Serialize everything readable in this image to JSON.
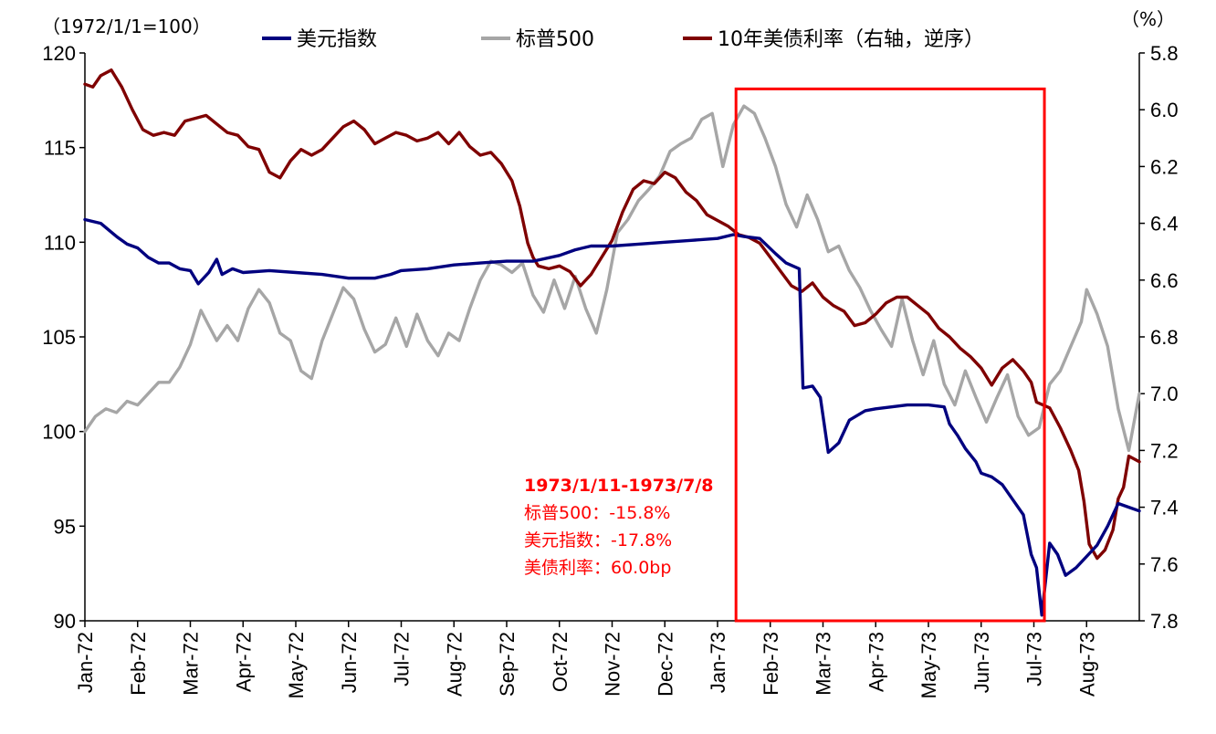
{
  "chart_data": {
    "type": "line",
    "left_axis_unit": "（1972/1/1=100）",
    "right_axis_unit": "（%）",
    "x_tick_labels": [
      "Jan-72",
      "Feb-72",
      "Mar-72",
      "Apr-72",
      "May-72",
      "Jun-72",
      "Jul-72",
      "Aug-72",
      "Sep-72",
      "Oct-72",
      "Nov-72",
      "Dec-72",
      "Jan-73",
      "Feb-73",
      "Mar-73",
      "Apr-73",
      "May-73",
      "Jun-73",
      "Jul-73",
      "Aug-73"
    ],
    "y_left_ticks": [
      "90",
      "95",
      "100",
      "105",
      "110",
      "115",
      "120"
    ],
    "y_right_ticks": [
      "5.8",
      "6.0",
      "6.2",
      "6.4",
      "6.6",
      "6.8",
      "7.0",
      "7.2",
      "7.4",
      "7.6",
      "7.8"
    ],
    "y_left_range": [
      90,
      120
    ],
    "y_right_range": [
      5.8,
      7.8
    ],
    "y_right_reversed": true,
    "x_range_months": [
      0,
      20
    ],
    "grid": false,
    "legend_position": "top",
    "series": [
      {
        "name": "美元指数",
        "axis": "left",
        "color": "#00007f",
        "points": [
          [
            0,
            111.2
          ],
          [
            0.3,
            111
          ],
          [
            0.6,
            110.3
          ],
          [
            0.8,
            109.9
          ],
          [
            1.0,
            109.7
          ],
          [
            1.2,
            109.2
          ],
          [
            1.4,
            108.9
          ],
          [
            1.6,
            108.9
          ],
          [
            1.8,
            108.6
          ],
          [
            2.0,
            108.5
          ],
          [
            2.15,
            107.8
          ],
          [
            2.35,
            108.4
          ],
          [
            2.5,
            109.1
          ],
          [
            2.6,
            108.3
          ],
          [
            2.8,
            108.6
          ],
          [
            3.0,
            108.4
          ],
          [
            3.5,
            108.5
          ],
          [
            4.0,
            108.4
          ],
          [
            4.5,
            108.3
          ],
          [
            5.0,
            108.1
          ],
          [
            5.5,
            108.1
          ],
          [
            5.8,
            108.3
          ],
          [
            6.0,
            108.5
          ],
          [
            6.5,
            108.6
          ],
          [
            7.0,
            108.8
          ],
          [
            7.5,
            108.9
          ],
          [
            8.0,
            109.0
          ],
          [
            8.5,
            109.0
          ],
          [
            9.0,
            109.3
          ],
          [
            9.3,
            109.6
          ],
          [
            9.6,
            109.8
          ],
          [
            10.0,
            109.8
          ],
          [
            10.5,
            109.9
          ],
          [
            11.0,
            110.0
          ],
          [
            11.5,
            110.1
          ],
          [
            12.0,
            110.2
          ],
          [
            12.3,
            110.4
          ],
          [
            12.5,
            110.3
          ],
          [
            12.8,
            110.2
          ],
          [
            13.1,
            109.4
          ],
          [
            13.3,
            108.9
          ],
          [
            13.55,
            108.6
          ],
          [
            13.62,
            102.3
          ],
          [
            13.8,
            102.4
          ],
          [
            13.95,
            101.8
          ],
          [
            14.1,
            98.9
          ],
          [
            14.3,
            99.4
          ],
          [
            14.5,
            100.6
          ],
          [
            14.8,
            101.1
          ],
          [
            15.0,
            101.2
          ],
          [
            15.3,
            101.3
          ],
          [
            15.6,
            101.4
          ],
          [
            16.0,
            101.4
          ],
          [
            16.3,
            101.3
          ],
          [
            16.4,
            100.4
          ],
          [
            16.55,
            99.8
          ],
          [
            16.7,
            99.1
          ],
          [
            16.9,
            98.4
          ],
          [
            17.0,
            97.8
          ],
          [
            17.2,
            97.6
          ],
          [
            17.4,
            97.2
          ],
          [
            17.6,
            96.4
          ],
          [
            17.8,
            95.6
          ],
          [
            17.95,
            93.5
          ],
          [
            18.05,
            92.8
          ],
          [
            18.15,
            90.3
          ],
          [
            18.3,
            94.1
          ],
          [
            18.45,
            93.5
          ],
          [
            18.6,
            92.4
          ],
          [
            18.8,
            92.8
          ],
          [
            19.0,
            93.4
          ],
          [
            19.2,
            94.0
          ],
          [
            19.4,
            95.0
          ],
          [
            19.6,
            96.2
          ],
          [
            19.8,
            96.0
          ],
          [
            20.0,
            95.8
          ]
        ]
      },
      {
        "name": "标普500",
        "axis": "left",
        "color": "#a6a6a6",
        "points": [
          [
            0,
            100.0
          ],
          [
            0.2,
            100.8
          ],
          [
            0.4,
            101.2
          ],
          [
            0.6,
            101.0
          ],
          [
            0.8,
            101.6
          ],
          [
            1.0,
            101.4
          ],
          [
            1.2,
            102.0
          ],
          [
            1.4,
            102.6
          ],
          [
            1.6,
            102.6
          ],
          [
            1.8,
            103.4
          ],
          [
            2.0,
            104.6
          ],
          [
            2.2,
            106.4
          ],
          [
            2.35,
            105.6
          ],
          [
            2.5,
            104.8
          ],
          [
            2.7,
            105.6
          ],
          [
            2.9,
            104.8
          ],
          [
            3.1,
            106.5
          ],
          [
            3.3,
            107.5
          ],
          [
            3.5,
            106.8
          ],
          [
            3.7,
            105.2
          ],
          [
            3.9,
            104.8
          ],
          [
            4.1,
            103.2
          ],
          [
            4.3,
            102.8
          ],
          [
            4.5,
            104.8
          ],
          [
            4.7,
            106.2
          ],
          [
            4.9,
            107.6
          ],
          [
            5.1,
            107.0
          ],
          [
            5.3,
            105.4
          ],
          [
            5.5,
            104.2
          ],
          [
            5.7,
            104.6
          ],
          [
            5.9,
            106.0
          ],
          [
            6.1,
            104.5
          ],
          [
            6.3,
            106.2
          ],
          [
            6.5,
            104.8
          ],
          [
            6.7,
            104.0
          ],
          [
            6.9,
            105.2
          ],
          [
            7.1,
            104.8
          ],
          [
            7.3,
            106.5
          ],
          [
            7.5,
            108.0
          ],
          [
            7.7,
            109.0
          ],
          [
            7.9,
            108.8
          ],
          [
            8.1,
            108.4
          ],
          [
            8.3,
            108.9
          ],
          [
            8.5,
            107.2
          ],
          [
            8.7,
            106.3
          ],
          [
            8.9,
            108.0
          ],
          [
            9.1,
            106.5
          ],
          [
            9.3,
            108.2
          ],
          [
            9.5,
            106.5
          ],
          [
            9.7,
            105.2
          ],
          [
            9.9,
            107.5
          ],
          [
            10.1,
            110.5
          ],
          [
            10.3,
            111.2
          ],
          [
            10.5,
            112.2
          ],
          [
            10.7,
            112.8
          ],
          [
            10.9,
            113.5
          ],
          [
            11.1,
            114.8
          ],
          [
            11.3,
            115.2
          ],
          [
            11.5,
            115.5
          ],
          [
            11.7,
            116.5
          ],
          [
            11.9,
            116.8
          ],
          [
            12.1,
            114.0
          ],
          [
            12.3,
            116.2
          ],
          [
            12.5,
            117.2
          ],
          [
            12.7,
            116.8
          ],
          [
            12.9,
            115.5
          ],
          [
            13.1,
            114.0
          ],
          [
            13.3,
            112.0
          ],
          [
            13.5,
            110.8
          ],
          [
            13.7,
            112.5
          ],
          [
            13.9,
            111.2
          ],
          [
            14.1,
            109.5
          ],
          [
            14.3,
            109.8
          ],
          [
            14.5,
            108.5
          ],
          [
            14.7,
            107.6
          ],
          [
            14.9,
            106.4
          ],
          [
            15.1,
            105.4
          ],
          [
            15.3,
            104.5
          ],
          [
            15.5,
            107.0
          ],
          [
            15.7,
            104.8
          ],
          [
            15.9,
            103.0
          ],
          [
            16.1,
            104.8
          ],
          [
            16.3,
            102.5
          ],
          [
            16.5,
            101.4
          ],
          [
            16.7,
            103.2
          ],
          [
            16.9,
            101.8
          ],
          [
            17.1,
            100.5
          ],
          [
            17.3,
            101.8
          ],
          [
            17.5,
            103.0
          ],
          [
            17.7,
            100.8
          ],
          [
            17.9,
            99.8
          ],
          [
            18.1,
            100.2
          ],
          [
            18.3,
            102.5
          ],
          [
            18.5,
            103.2
          ],
          [
            18.7,
            104.5
          ],
          [
            18.9,
            105.8
          ],
          [
            19.0,
            107.5
          ],
          [
            19.2,
            106.2
          ],
          [
            19.4,
            104.5
          ],
          [
            19.6,
            101.2
          ],
          [
            19.8,
            99.0
          ],
          [
            20.0,
            102.0
          ]
        ]
      },
      {
        "name": "10年美债利率（右轴，逆序）",
        "axis": "right",
        "color": "#7f0000",
        "points": [
          [
            0,
            5.91
          ],
          [
            0.15,
            5.92
          ],
          [
            0.3,
            5.88
          ],
          [
            0.5,
            5.86
          ],
          [
            0.7,
            5.92
          ],
          [
            0.9,
            6.0
          ],
          [
            1.1,
            6.07
          ],
          [
            1.3,
            6.09
          ],
          [
            1.5,
            6.08
          ],
          [
            1.7,
            6.09
          ],
          [
            1.9,
            6.04
          ],
          [
            2.1,
            6.03
          ],
          [
            2.3,
            6.02
          ],
          [
            2.5,
            6.05
          ],
          [
            2.7,
            6.08
          ],
          [
            2.9,
            6.09
          ],
          [
            3.1,
            6.13
          ],
          [
            3.3,
            6.14
          ],
          [
            3.5,
            6.22
          ],
          [
            3.7,
            6.24
          ],
          [
            3.9,
            6.18
          ],
          [
            4.1,
            6.14
          ],
          [
            4.3,
            6.16
          ],
          [
            4.5,
            6.14
          ],
          [
            4.7,
            6.1
          ],
          [
            4.9,
            6.06
          ],
          [
            5.1,
            6.04
          ],
          [
            5.3,
            6.07
          ],
          [
            5.5,
            6.12
          ],
          [
            5.7,
            6.1
          ],
          [
            5.9,
            6.08
          ],
          [
            6.1,
            6.09
          ],
          [
            6.3,
            6.11
          ],
          [
            6.5,
            6.1
          ],
          [
            6.7,
            6.08
          ],
          [
            6.9,
            6.12
          ],
          [
            7.1,
            6.08
          ],
          [
            7.3,
            6.13
          ],
          [
            7.5,
            6.16
          ],
          [
            7.7,
            6.15
          ],
          [
            7.9,
            6.19
          ],
          [
            8.1,
            6.25
          ],
          [
            8.25,
            6.34
          ],
          [
            8.4,
            6.47
          ],
          [
            8.5,
            6.52
          ],
          [
            8.6,
            6.55
          ],
          [
            8.8,
            6.56
          ],
          [
            9.0,
            6.55
          ],
          [
            9.2,
            6.57
          ],
          [
            9.4,
            6.62
          ],
          [
            9.6,
            6.58
          ],
          [
            9.8,
            6.52
          ],
          [
            10.0,
            6.46
          ],
          [
            10.2,
            6.36
          ],
          [
            10.4,
            6.28
          ],
          [
            10.6,
            6.25
          ],
          [
            10.8,
            6.26
          ],
          [
            11.0,
            6.22
          ],
          [
            11.2,
            6.24
          ],
          [
            11.4,
            6.29
          ],
          [
            11.6,
            6.32
          ],
          [
            11.8,
            6.37
          ],
          [
            12.0,
            6.39
          ],
          [
            12.2,
            6.41
          ],
          [
            12.4,
            6.44
          ],
          [
            12.6,
            6.45
          ],
          [
            12.8,
            6.47
          ],
          [
            13.0,
            6.52
          ],
          [
            13.2,
            6.57
          ],
          [
            13.4,
            6.62
          ],
          [
            13.6,
            6.64
          ],
          [
            13.8,
            6.61
          ],
          [
            14.0,
            6.66
          ],
          [
            14.2,
            6.69
          ],
          [
            14.4,
            6.71
          ],
          [
            14.6,
            6.76
          ],
          [
            14.8,
            6.75
          ],
          [
            15.0,
            6.72
          ],
          [
            15.2,
            6.68
          ],
          [
            15.4,
            6.66
          ],
          [
            15.6,
            6.66
          ],
          [
            15.8,
            6.69
          ],
          [
            16.0,
            6.72
          ],
          [
            16.2,
            6.77
          ],
          [
            16.4,
            6.8
          ],
          [
            16.6,
            6.84
          ],
          [
            16.8,
            6.87
          ],
          [
            17.0,
            6.91
          ],
          [
            17.2,
            6.97
          ],
          [
            17.4,
            6.91
          ],
          [
            17.6,
            6.88
          ],
          [
            17.8,
            6.92
          ],
          [
            17.95,
            6.96
          ],
          [
            18.05,
            7.03
          ],
          [
            18.3,
            7.05
          ],
          [
            18.5,
            7.12
          ],
          [
            18.7,
            7.2
          ],
          [
            18.85,
            7.27
          ],
          [
            18.95,
            7.38
          ],
          [
            19.05,
            7.53
          ],
          [
            19.2,
            7.58
          ],
          [
            19.35,
            7.55
          ],
          [
            19.5,
            7.48
          ],
          [
            19.6,
            7.37
          ],
          [
            19.7,
            7.33
          ],
          [
            19.8,
            7.22
          ],
          [
            20.0,
            7.24
          ]
        ]
      }
    ],
    "highlight_box": {
      "x_start_month": 12.35,
      "x_end_month": 18.2,
      "y_top": 118.1,
      "y_bottom": 90,
      "color": "#ff0000"
    },
    "annotation": {
      "lines": [
        "1973/1/11-1973/7/8",
        "标普500：-15.8%",
        "美元指数：-17.8%",
        "美债利率：60.0bp"
      ],
      "color": "#ff0000"
    }
  }
}
